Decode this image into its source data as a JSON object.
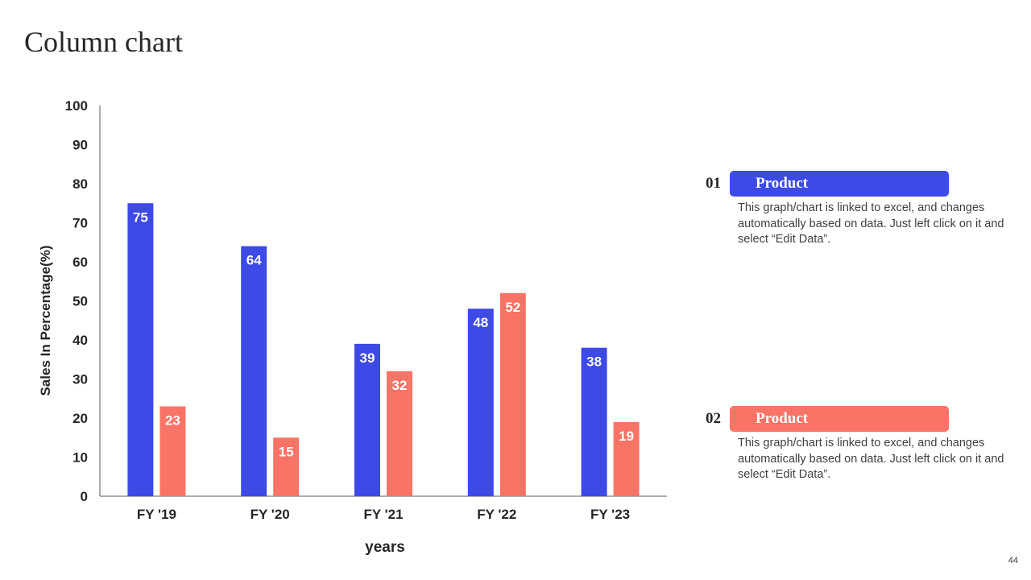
{
  "title": "Column chart",
  "page_number": "44",
  "colors": {
    "series1": "#3d4ae6",
    "series2": "#f97366",
    "axis": "#595959",
    "text": "#262626"
  },
  "chart_data": {
    "type": "bar",
    "categories": [
      "FY '19",
      "FY '20",
      "FY '21",
      "FY '22",
      "FY '23"
    ],
    "series": [
      {
        "values": [
          75,
          64,
          39,
          48,
          38
        ]
      },
      {
        "values": [
          23,
          15,
          32,
          52,
          19
        ]
      }
    ],
    "xlabel": "years",
    "ylabel": "Sales In Percentage(%)",
    "ylim": [
      0,
      100
    ],
    "yticks": [
      0,
      10,
      20,
      30,
      40,
      50,
      60,
      70,
      80,
      90,
      100
    ],
    "grid": false,
    "data_labels": true
  },
  "legend": [
    {
      "number": "01",
      "label": "Product",
      "description": "This graph/chart is linked to excel, and changes automatically based on data. Just left click on it and select “Edit Data”."
    },
    {
      "number": "02",
      "label": "Product",
      "description": "This graph/chart is linked to excel, and changes automatically based on data. Just left click on it and select “Edit Data”."
    }
  ]
}
